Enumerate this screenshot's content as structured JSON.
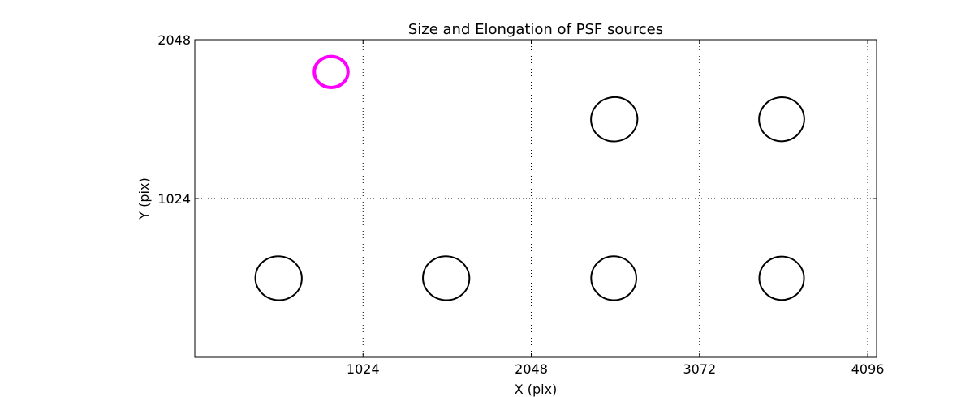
{
  "chart_data": {
    "type": "scatter",
    "title": "Size and Elongation of PSF sources",
    "xlabel": "X (pix)",
    "ylabel": "Y (pix)",
    "xlim": [
      0,
      4150
    ],
    "ylim": [
      0,
      2048
    ],
    "xticks": [
      "1024",
      "2048",
      "3072",
      "4096"
    ],
    "yticks": [
      "1024",
      "2048"
    ],
    "grid": true,
    "colors": {
      "normal": "#000000",
      "highlight": "#ff00ff"
    },
    "sources": [
      {
        "x": 830,
        "y": 1840,
        "rx": 205,
        "ry": 200,
        "angle": 0,
        "highlight": true
      },
      {
        "x": 2553,
        "y": 1535,
        "rx": 283,
        "ry": 285,
        "angle": -10,
        "highlight": false
      },
      {
        "x": 3572,
        "y": 1535,
        "rx": 275,
        "ry": 283,
        "angle": -10,
        "highlight": false
      },
      {
        "x": 510,
        "y": 510,
        "rx": 283,
        "ry": 283,
        "angle": 8,
        "highlight": false
      },
      {
        "x": 1530,
        "y": 510,
        "rx": 283,
        "ry": 283,
        "angle": 8,
        "highlight": false
      },
      {
        "x": 2550,
        "y": 510,
        "rx": 275,
        "ry": 283,
        "angle": 5,
        "highlight": false
      },
      {
        "x": 3572,
        "y": 510,
        "rx": 272,
        "ry": 280,
        "angle": 5,
        "highlight": false
      }
    ]
  }
}
